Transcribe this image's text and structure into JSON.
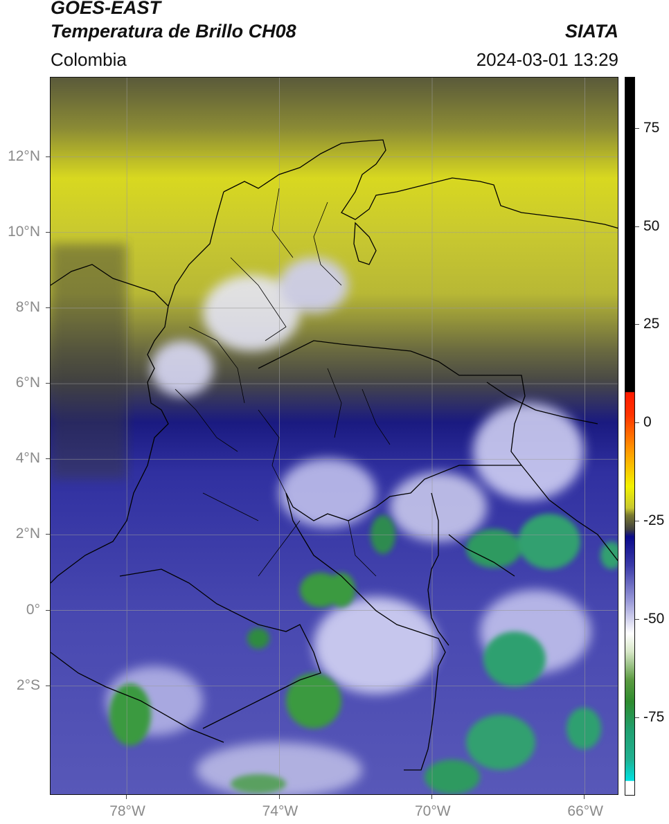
{
  "header": {
    "satellite": "GOES-EAST",
    "product": "Temperatura de Brillo CH08",
    "region": "Colombia",
    "agency": "SIATA",
    "datetime": "2024-03-01 13:29"
  },
  "map": {
    "lon_range": [
      -80,
      -65.1
    ],
    "lat_range": [
      -4.9,
      14.1
    ],
    "lat_ticks": [
      {
        "value": 12,
        "label": "12°N"
      },
      {
        "value": 10,
        "label": "10°N"
      },
      {
        "value": 8,
        "label": "8°N"
      },
      {
        "value": 6,
        "label": "6°N"
      },
      {
        "value": 4,
        "label": "4°N"
      },
      {
        "value": 2,
        "label": "2°N"
      },
      {
        "value": 0,
        "label": "0°"
      },
      {
        "value": -2,
        "label": "2°S"
      }
    ],
    "lon_ticks": [
      {
        "value": -78,
        "label": "78°W"
      },
      {
        "value": -74,
        "label": "74°W"
      },
      {
        "value": -70,
        "label": "70°W"
      },
      {
        "value": -66,
        "label": "66°W"
      }
    ],
    "gridlines": true
  },
  "colorbar": {
    "range": [
      -95,
      88
    ],
    "ticks": [
      {
        "value": 75,
        "label": "75"
      },
      {
        "value": 50,
        "label": "50"
      },
      {
        "value": 25,
        "label": "25"
      },
      {
        "value": 0,
        "label": "0"
      },
      {
        "value": -25,
        "label": "-25"
      },
      {
        "value": -50,
        "label": "-50"
      },
      {
        "value": -75,
        "label": "-75"
      }
    ],
    "colors": {
      "black": "#000000",
      "red": "#ff1a00",
      "orange": "#ff9900",
      "yellow": "#f2f200",
      "olive": "#7a7a30",
      "darkgray": "#404040",
      "navy": "#0a0a8a",
      "blue": "#3a3aa8",
      "white": "#ffffff",
      "green": "#2e8b2e",
      "teal": "#20b090",
      "cyan": "#00e0e0"
    }
  }
}
